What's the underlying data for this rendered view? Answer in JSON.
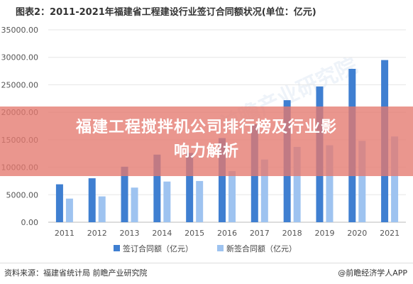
{
  "chart_data": {
    "type": "bar",
    "title": "图表2：2011-2021年福建省工程建设行业签订合同额状况(单位：亿元)",
    "categories": [
      "2011",
      "2012",
      "2013",
      "2014",
      "2015",
      "2016",
      "2017",
      "2018",
      "2019",
      "2020",
      "2021"
    ],
    "series": [
      {
        "name": "签订合同额（亿元）",
        "color": "#3f7fd1",
        "values": [
          6900,
          8000,
          10100,
          12300,
          12600,
          15300,
          17800,
          22200,
          24700,
          27900,
          29500
        ]
      },
      {
        "name": "新签合同额（亿元）",
        "color": "#9ec3f0",
        "values": [
          4300,
          4700,
          6300,
          7400,
          7500,
          9300,
          11400,
          13700,
          14000,
          14800,
          15600
        ]
      }
    ],
    "yticks": [
      "0.00",
      "5000.00",
      "10000.00",
      "15000.00",
      "20000.00",
      "25000.00",
      "30000.00",
      "35000.00"
    ],
    "ylim": [
      0,
      35000
    ],
    "grid": true,
    "legend_position": "bottom"
  },
  "overlay": {
    "line1": "福建工程搅拌机公司排行榜及行业影",
    "line2": "响力解析"
  },
  "footer": {
    "source": "资料来源：福建省统计局 前瞻产业研究院",
    "credit": "@前瞻经济学人APP"
  },
  "watermark": "前瞻产业研究院"
}
